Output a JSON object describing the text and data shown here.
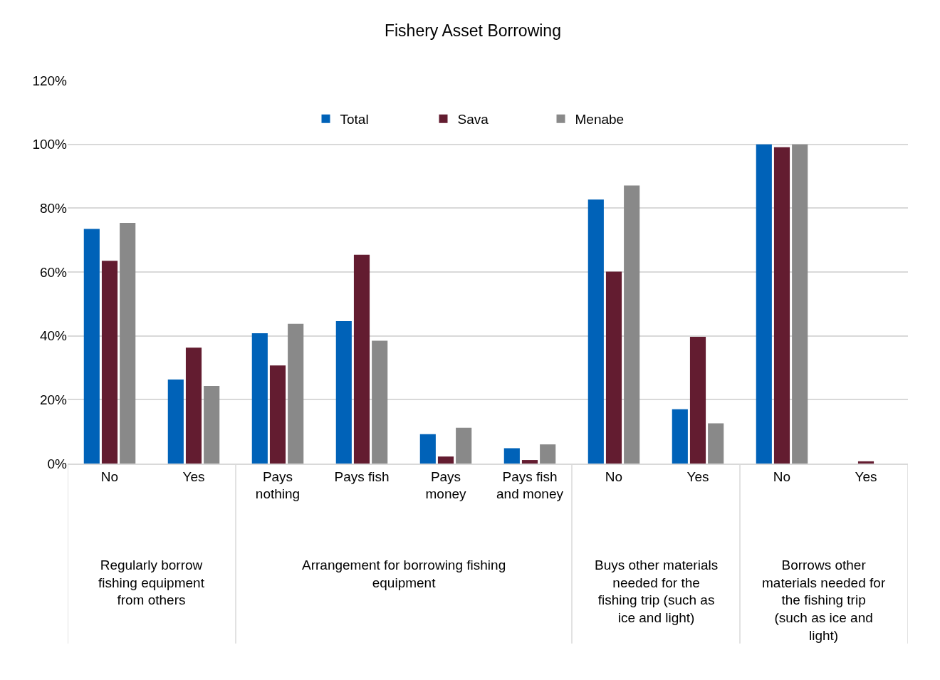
{
  "chart_data": {
    "type": "bar",
    "title": "Fishery Asset Borrowing",
    "categories": [
      "No",
      "Yes",
      "Pays nothing",
      "Pays fish",
      "Pays money",
      "Pays fish and money",
      "No",
      "Yes",
      "No",
      "Yes"
    ],
    "series": [
      {
        "name": "Total",
        "color": "#0062b8",
        "values": [
          73.5,
          26.3,
          40.8,
          44.6,
          9.2,
          4.8,
          82.7,
          17.0,
          100,
          0
        ]
      },
      {
        "name": "Sava",
        "color": "#631c30",
        "values": [
          63.5,
          36.3,
          30.7,
          65.4,
          2.2,
          1.1,
          60.1,
          39.7,
          99.1,
          0.7
        ]
      },
      {
        "name": "Menabe",
        "color": "#898989",
        "values": [
          75.4,
          24.3,
          43.8,
          38.5,
          11.2,
          6.0,
          87.1,
          12.6,
          100,
          0
        ]
      }
    ],
    "annotations": [
      "Regularly borrow fishing equipment from others",
      "Arrangement for borrowing fishing equipment",
      "Buys other materials needed for the fishing trip (such as ice and light)",
      "Borrows other materials needed for the fishing trip (such as ice and light)"
    ],
    "ylim": [
      0,
      120
    ],
    "yticks": [
      {
        "value": 0,
        "label": "0%"
      },
      {
        "value": 20,
        "label": "20%"
      },
      {
        "value": 40,
        "label": "40%"
      },
      {
        "value": 60,
        "label": "60%"
      },
      {
        "value": 80,
        "label": "80%"
      },
      {
        "value": 100,
        "label": "100%"
      },
      {
        "value": 120,
        "label": "120%"
      }
    ],
    "grid": "y",
    "legend": "top"
  }
}
